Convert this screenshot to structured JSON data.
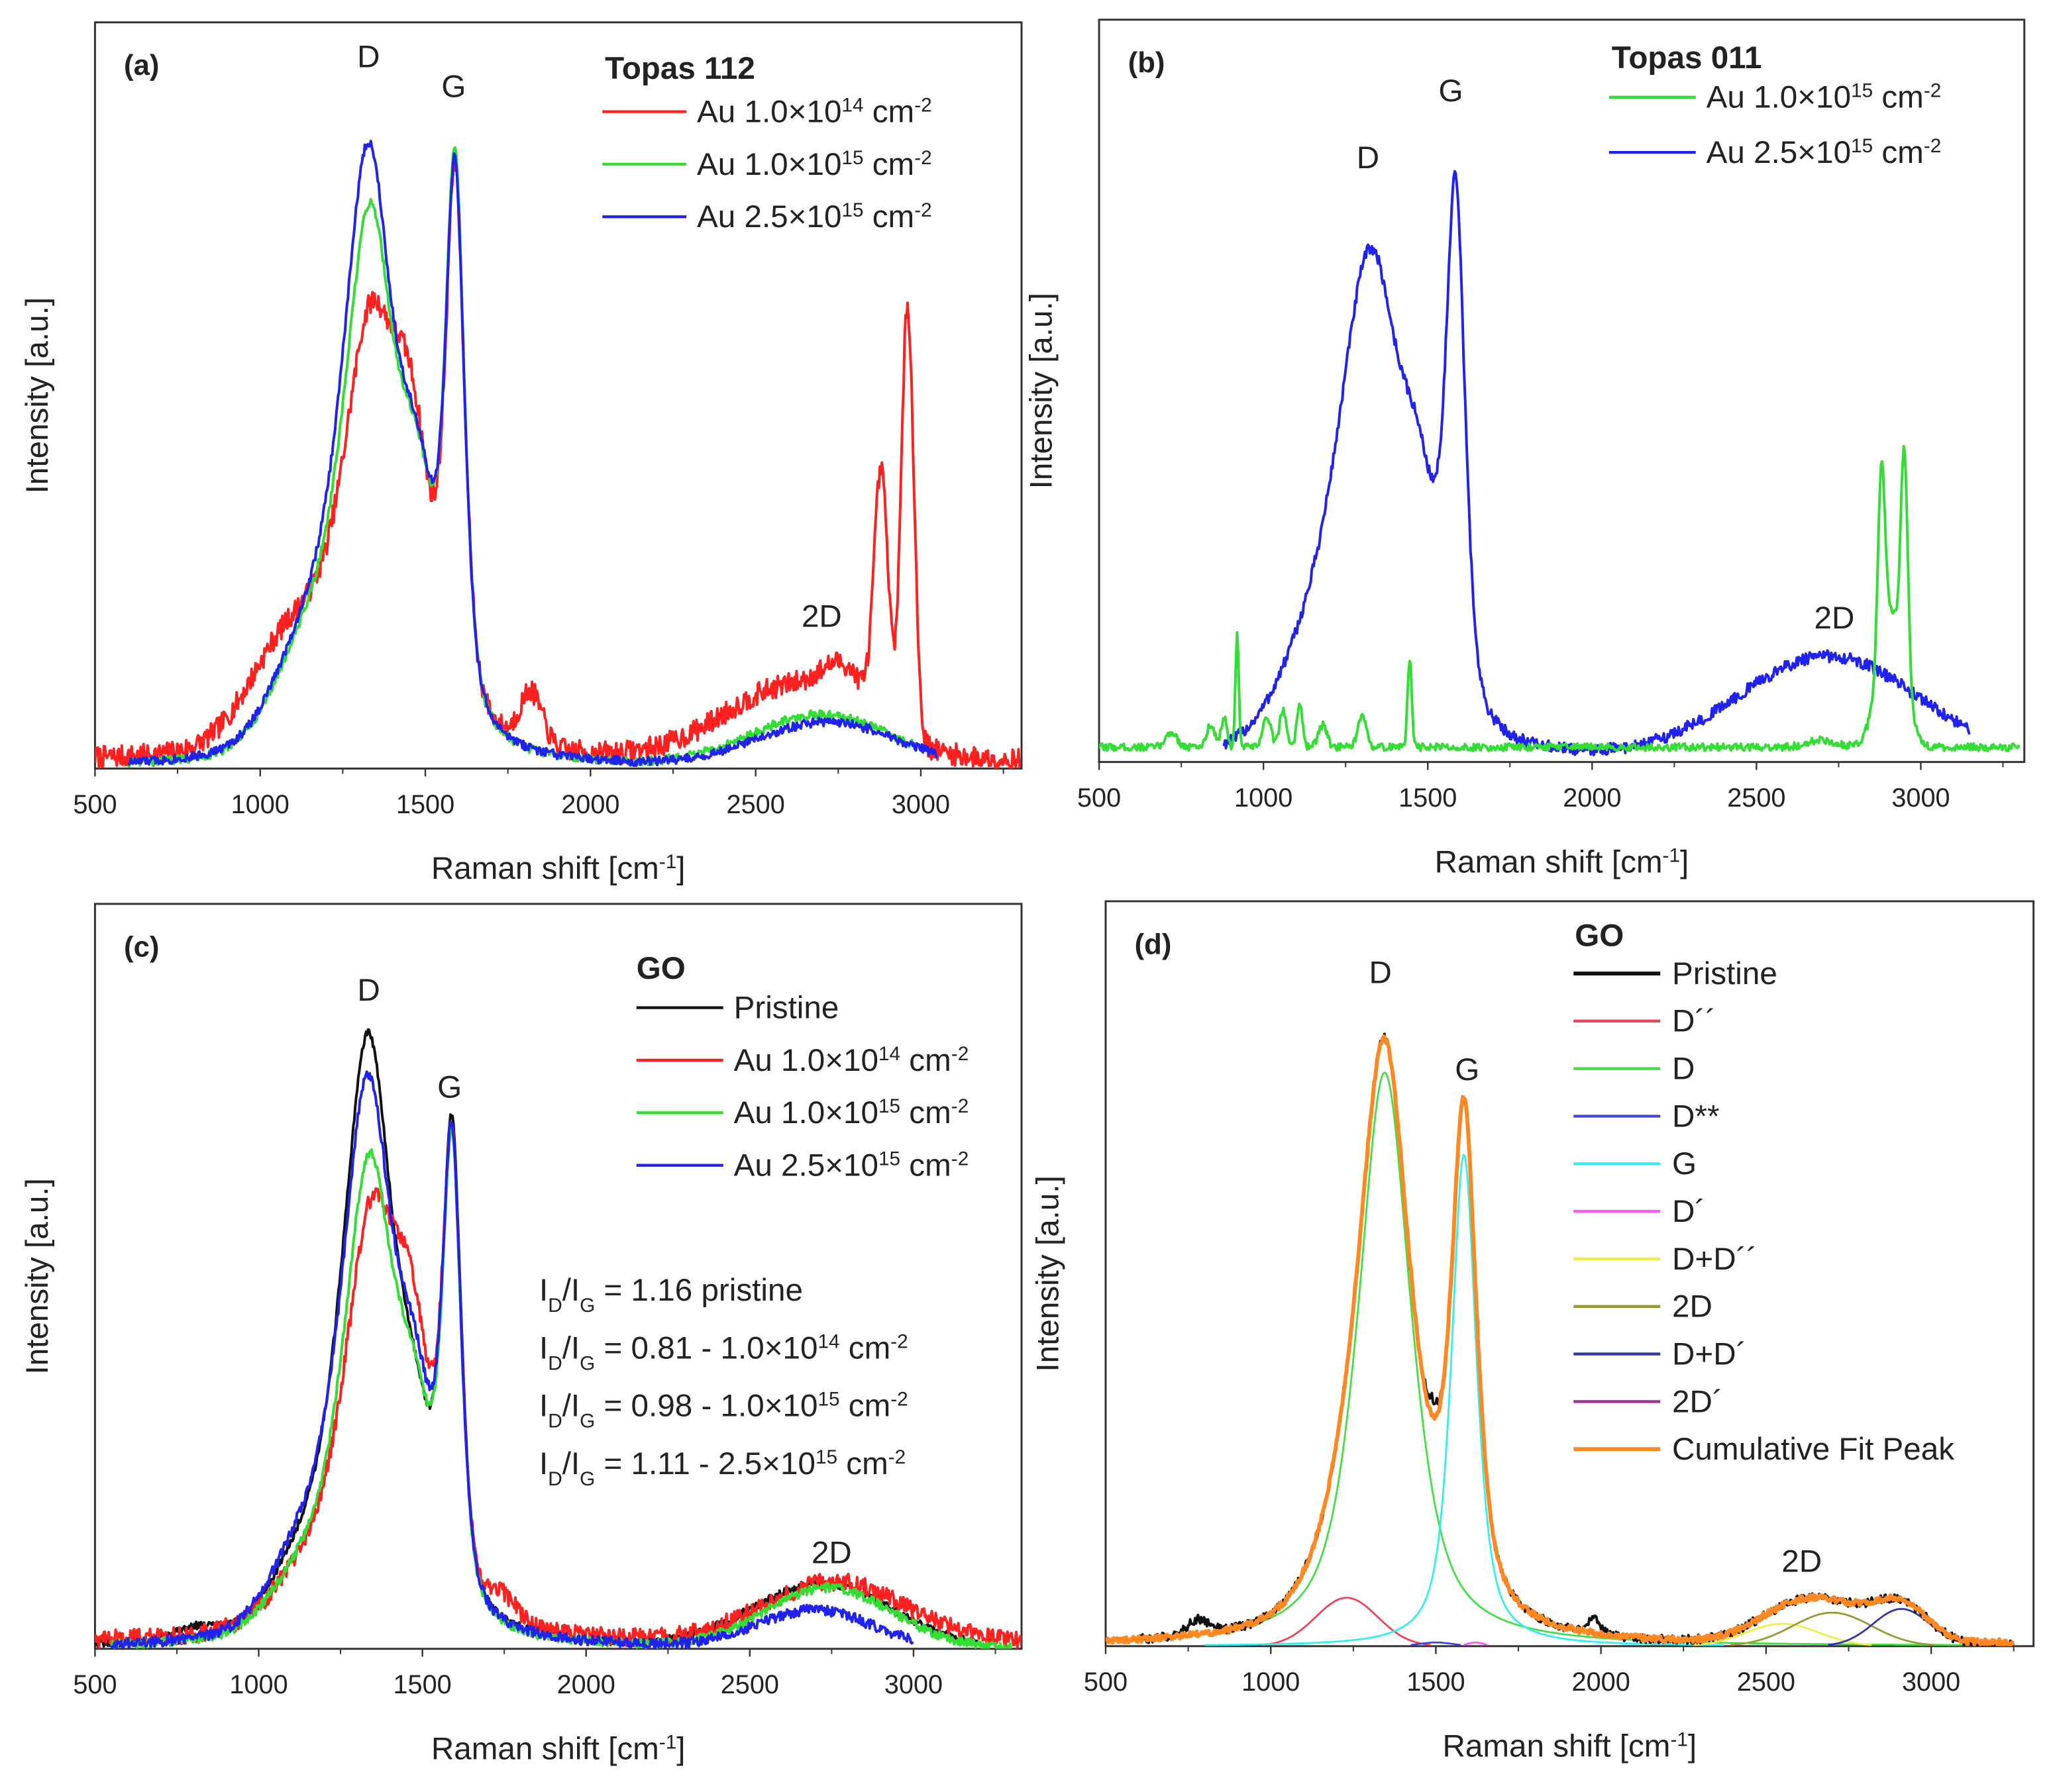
{
  "chart_data": [
    {
      "panel": "a",
      "type": "line",
      "label": "(a)",
      "xlabel": {
        "text": "Raman shift [cm",
        "exp": "-1",
        "close": "]"
      },
      "ylabel": "Intensity [a.u.]",
      "xlim": [
        500,
        3305
      ],
      "ylim": [
        0,
        1
      ],
      "xticks": [
        "500",
        "1000",
        "1500",
        "2000",
        "2500",
        "3000"
      ],
      "legend": {
        "title": "Topas 112",
        "placement": "top-right",
        "entries": [
          {
            "prefix": "Au 1.0×10",
            "exp": "14",
            "unit": " cm",
            "unit_exp": "-2",
            "color": "#ff2020"
          },
          {
            "prefix": "Au 1.0×10",
            "exp": "15",
            "unit": " cm",
            "unit_exp": "-2",
            "color": "#33dd33"
          },
          {
            "prefix": "Au 2.5×10",
            "exp": "15",
            "unit": " cm",
            "unit_exp": "-2",
            "color": "#2222ee"
          }
        ]
      },
      "annotations": [
        {
          "text": "D",
          "x": 1328,
          "y": 0.94
        },
        {
          "text": "G",
          "x": 1586,
          "y": 0.9
        },
        {
          "text": "2D",
          "x": 2700,
          "y": 0.19
        }
      ],
      "series": [
        {
          "name": "Au 1.0×10^14 cm^-2",
          "color": "#ff2020",
          "x_range": [
            500,
            3300
          ],
          "baseline": 0.01,
          "noise": 0.015,
          "peaks": [
            [
              1335,
              0.56,
              200,
              0.6
            ],
            [
              1590,
              0.74,
              70,
              0.6
            ],
            [
              1460,
              0.28,
              130,
              0
            ],
            [
              1100,
              0.14,
              300,
              0
            ],
            [
              1820,
              0.07,
              80,
              0
            ],
            [
              2620,
              0.1,
              500,
              0
            ],
            [
              2770,
              0.05,
              150,
              0
            ],
            [
              2880,
              0.33,
              50,
              0
            ],
            [
              2960,
              0.58,
              45,
              0
            ]
          ]
        },
        {
          "name": "Au 1.0×10^15 cm^-2",
          "color": "#33dd33",
          "x_range": [
            600,
            2980
          ],
          "baseline": 0,
          "noise": 0.006,
          "peaks": [
            [
              1335,
              0.72,
              190,
              0.6
            ],
            [
              1590,
              0.76,
              70,
              0.6
            ],
            [
              1480,
              0.22,
              120,
              0
            ],
            [
              1150,
              0.12,
              250,
              0
            ],
            [
              2700,
              0.07,
              500,
              0
            ]
          ]
        },
        {
          "name": "Au 2.5×10^15 cm^-2",
          "color": "#2222ee",
          "x_range": [
            600,
            3050
          ],
          "baseline": 0,
          "noise": 0.006,
          "peaks": [
            [
              1330,
              0.8,
              190,
              0.6
            ],
            [
              1590,
              0.74,
              70,
              0.6
            ],
            [
              1480,
              0.22,
              120,
              0
            ],
            [
              1150,
              0.12,
              250,
              0
            ],
            [
              2720,
              0.06,
              500,
              0
            ]
          ]
        }
      ]
    },
    {
      "panel": "b",
      "type": "line",
      "label": "(b)",
      "xlabel": {
        "text": "Raman shift [cm",
        "exp": "-1",
        "close": "]"
      },
      "ylabel": "Intensity [a.u.]",
      "xlim": [
        500,
        3315
      ],
      "ylim": [
        0,
        1
      ],
      "xticks": [
        "500",
        "1000",
        "1500",
        "2000",
        "2500",
        "3000"
      ],
      "legend": {
        "title": "Topas 011",
        "placement": "top-right",
        "entries": [
          {
            "prefix": "Au 1.0×10",
            "exp": "15",
            "unit": " cm",
            "unit_exp": "-2",
            "color": "#33dd33"
          },
          {
            "prefix": "Au 2.5×10",
            "exp": "15",
            "unit": " cm",
            "unit_exp": "-2",
            "color": "#2222ee"
          }
        ]
      },
      "annotations": [
        {
          "text": "D",
          "x": 1318,
          "y": 0.8
        },
        {
          "text": "G",
          "x": 1570,
          "y": 0.89
        },
        {
          "text": "2D",
          "x": 2737,
          "y": 0.18
        }
      ],
      "series": [
        {
          "name": "Au 2.5×10^15 cm^-2",
          "color": "#2222ee",
          "x_range": [
            880,
            3150
          ],
          "baseline": 0,
          "noise": 0.008,
          "peaks": [
            [
              1330,
              0.66,
              230,
              0.5
            ],
            [
              1585,
              0.7,
              70,
              0.5
            ],
            [
              1480,
              0.18,
              120,
              0
            ],
            [
              1150,
              0.1,
              250,
              0
            ],
            [
              2720,
              0.14,
              650,
              0
            ]
          ]
        },
        {
          "name": "Au 1.0×10^15 cm^-2",
          "color": "#33dd33",
          "x_range": [
            500,
            3300
          ],
          "baseline": 0.02,
          "noise": 0.005,
          "peaks": [
            [
              720,
              0.02,
              40,
              0
            ],
            [
              840,
              0.03,
              30,
              0
            ],
            [
              880,
              0.04,
              20,
              0
            ],
            [
              920,
              0.15,
              12,
              0
            ],
            [
              1010,
              0.04,
              30,
              0
            ],
            [
              1060,
              0.05,
              25,
              0
            ],
            [
              1110,
              0.06,
              20,
              0
            ],
            [
              1180,
              0.03,
              30,
              0
            ],
            [
              1300,
              0.04,
              30,
              0
            ],
            [
              1445,
              0.12,
              15,
              0
            ],
            [
              2700,
              0.01,
              100,
              0
            ],
            [
              2880,
              0.25,
              25,
              0
            ],
            [
              2910,
              0.18,
              90,
              0
            ],
            [
              2950,
              0.3,
              25,
              0
            ]
          ]
        }
      ]
    },
    {
      "panel": "c",
      "type": "line",
      "label": "(c)",
      "xlabel": {
        "text": "Raman shift [cm",
        "exp": "-1",
        "close": "]"
      },
      "ylabel": "Intensity [a.u.]",
      "xlim": [
        500,
        3330
      ],
      "ylim": [
        0,
        1
      ],
      "xticks": [
        "500",
        "1000",
        "1500",
        "2000",
        "2500",
        "3000"
      ],
      "legend": {
        "title": "GO",
        "placement": "top-right",
        "entries": [
          {
            "prefix": "Pristine",
            "exp": "",
            "unit": "",
            "unit_exp": "",
            "color": "#111111"
          },
          {
            "prefix": "Au 1.0×10",
            "exp": "14",
            "unit": " cm",
            "unit_exp": "-2",
            "color": "#ff2020"
          },
          {
            "prefix": "Au 1.0×10",
            "exp": "15",
            "unit": " cm",
            "unit_exp": "-2",
            "color": "#33dd33"
          },
          {
            "prefix": "Au 2.5×10",
            "exp": "15",
            "unit": " cm",
            "unit_exp": "-2",
            "color": "#2222ee"
          }
        ]
      },
      "ratio_label": {
        "i1": "I",
        "s1": "D",
        "i2": "/I",
        "s2": "G"
      },
      "ratios": [
        {
          "text": " = 1.16 pristine",
          "exp": "",
          "unit": "",
          "unit_exp": ""
        },
        {
          "text": " = 0.81 - 1.0×10",
          "exp": "14",
          "unit": " cm",
          "unit_exp": "-2"
        },
        {
          "text": " = 0.98 - 1.0×10",
          "exp": "15",
          "unit": " cm",
          "unit_exp": "-2"
        },
        {
          "text": " = 1.11 - 2.5×10",
          "exp": "15",
          "unit": " cm",
          "unit_exp": "-2"
        }
      ],
      "annotations": [
        {
          "text": "D",
          "x": 1336,
          "y": 0.87
        },
        {
          "text": "G",
          "x": 1583,
          "y": 0.74
        },
        {
          "text": "2D",
          "x": 2750,
          "y": 0.115
        }
      ],
      "series": [
        {
          "name": "Pristine",
          "color": "#111111",
          "x_range": [
            500,
            3200
          ],
          "baseline": 0,
          "noise": 0.005,
          "peaks": [
            [
              1335,
              0.8,
              190,
              0.6
            ],
            [
              1590,
              0.64,
              70,
              0.6
            ],
            [
              1480,
              0.15,
              120,
              0
            ],
            [
              1150,
              0.08,
              250,
              0
            ],
            [
              800,
              0.015,
              150,
              0
            ],
            [
              2720,
              0.085,
              500,
              0
            ]
          ]
        },
        {
          "name": "Au 1.0×10^14 cm^-2",
          "color": "#ff2020",
          "x_range": [
            500,
            3330
          ],
          "baseline": 0.008,
          "noise": 0.012,
          "peaks": [
            [
              1345,
              0.56,
              200,
              0.6
            ],
            [
              1590,
              0.62,
              70,
              0.6
            ],
            [
              1470,
              0.26,
              130,
              0
            ],
            [
              1150,
              0.06,
              250,
              0
            ],
            [
              1750,
              0.03,
              100,
              0
            ],
            [
              2760,
              0.08,
              500,
              0
            ]
          ]
        },
        {
          "name": "Au 1.0×10^15 cm^-2",
          "color": "#33dd33",
          "x_range": [
            550,
            3300
          ],
          "baseline": 0,
          "noise": 0.006,
          "peaks": [
            [
              1340,
              0.64,
              190,
              0.6
            ],
            [
              1590,
              0.63,
              70,
              0.6
            ],
            [
              1480,
              0.18,
              120,
              0
            ],
            [
              1150,
              0.07,
              250,
              0
            ],
            [
              2740,
              0.08,
              450,
              0
            ]
          ]
        },
        {
          "name": "Au 2.5×10^15 cm^-2",
          "color": "#2222ee",
          "x_range": [
            550,
            3000
          ],
          "baseline": 0,
          "noise": 0.007,
          "peaks": [
            [
              1335,
              0.74,
              190,
              0.6
            ],
            [
              1590,
              0.63,
              70,
              0.6
            ],
            [
              1480,
              0.2,
              120,
              0
            ],
            [
              1150,
              0.1,
              250,
              0
            ],
            [
              2700,
              0.05,
              400,
              0
            ]
          ]
        }
      ]
    },
    {
      "panel": "d",
      "type": "line",
      "label": "(d)",
      "xlabel": {
        "text": "Raman shift [cm",
        "exp": "-1",
        "close": "]"
      },
      "ylabel": "Intensity [a.u.]",
      "xlim": [
        500,
        3310
      ],
      "ylim": [
        0,
        1
      ],
      "xticks": [
        "500",
        "1000",
        "1500",
        "2000",
        "2500",
        "3000"
      ],
      "legend": {
        "title": "GO",
        "placement": "top-right",
        "entries": [
          {
            "prefix": "Pristine",
            "exp": "",
            "unit": "",
            "unit_exp": "",
            "color": "#111111"
          },
          {
            "prefix": "D´´",
            "exp": "",
            "unit": "",
            "unit_exp": "",
            "color": "#ee4455"
          },
          {
            "prefix": "D",
            "exp": "",
            "unit": "",
            "unit_exp": "",
            "color": "#44dd44"
          },
          {
            "prefix": "D**",
            "exp": "",
            "unit": "",
            "unit_exp": "",
            "color": "#4444dd"
          },
          {
            "prefix": "G",
            "exp": "",
            "unit": "",
            "unit_exp": "",
            "color": "#33eeee"
          },
          {
            "prefix": "D´",
            "exp": "",
            "unit": "",
            "unit_exp": "",
            "color": "#ff55ff"
          },
          {
            "prefix": "D+D´´",
            "exp": "",
            "unit": "",
            "unit_exp": "",
            "color": "#eeee44"
          },
          {
            "prefix": "2D",
            "exp": "",
            "unit": "",
            "unit_exp": "",
            "color": "#999933"
          },
          {
            "prefix": "D+D´",
            "exp": "",
            "unit": "",
            "unit_exp": "",
            "color": "#3333aa"
          },
          {
            "prefix": "2D´",
            "exp": "",
            "unit": "",
            "unit_exp": "",
            "color": "#993399"
          },
          {
            "prefix": "Cumulative Fit Peak",
            "exp": "",
            "unit": "",
            "unit_exp": "",
            "color": "#ff8822"
          }
        ]
      },
      "annotations": [
        {
          "text": "D",
          "x": 1332,
          "y": 0.89
        },
        {
          "text": "G",
          "x": 1595,
          "y": 0.76
        },
        {
          "text": "2D",
          "x": 2608,
          "y": 0.1
        }
      ],
      "components": [
        {
          "name": "D´´",
          "color": "#ee4455",
          "peaks": [
            [
              1230,
              0.065,
              220,
              0
            ]
          ]
        },
        {
          "name": "D",
          "color": "#44dd44",
          "peaks": [
            [
              1345,
              0.77,
              190,
              0.7
            ]
          ]
        },
        {
          "name": "D**",
          "color": "#4444dd",
          "peaks": [
            [
              1500,
              0.005,
              120,
              0
            ]
          ]
        },
        {
          "name": "G",
          "color": "#33eeee",
          "peaks": [
            [
              1585,
              0.66,
              90,
              0.7
            ]
          ]
        },
        {
          "name": "D´",
          "color": "#ff55ff",
          "peaks": [
            [
              1620,
              0.005,
              60,
              0
            ]
          ]
        },
        {
          "name": "D+D´´",
          "color": "#eeee44",
          "peaks": [
            [
              2550,
              0.03,
              260,
              0
            ]
          ]
        },
        {
          "name": "2D",
          "color": "#999933",
          "peaks": [
            [
              2700,
              0.045,
              280,
              0
            ]
          ]
        },
        {
          "name": "D+D´",
          "color": "#3333aa",
          "peaks": [
            [
              2910,
              0.05,
              200,
              0
            ]
          ]
        },
        {
          "name": "2D´",
          "color": "#993399",
          "peaks": [
            [
              3180,
              0.004,
              120,
              0
            ]
          ]
        }
      ],
      "series": [
        {
          "name": "Pristine",
          "color": "#111111",
          "x_range": [
            600,
            3250
          ],
          "baseline": 0,
          "noise": 0.006,
          "peaks": [
            [
              1230,
              0.065,
              220,
              0
            ],
            [
              1345,
              0.77,
              190,
              0.7
            ],
            [
              1585,
              0.66,
              90,
              0.7
            ],
            [
              2550,
              0.03,
              260,
              0
            ],
            [
              2700,
              0.045,
              280,
              0
            ],
            [
              2910,
              0.05,
              200,
              0
            ],
            [
              780,
              0.02,
              80,
              0
            ],
            [
              1980,
              0.02,
              40,
              0
            ],
            [
              1490,
              0.03,
              40,
              0
            ]
          ]
        }
      ],
      "cumulative": {
        "name": "Cumulative Fit Peak",
        "color": "#ff8822",
        "x_range": [
          500,
          3250
        ],
        "noise": 0.004
      }
    }
  ]
}
